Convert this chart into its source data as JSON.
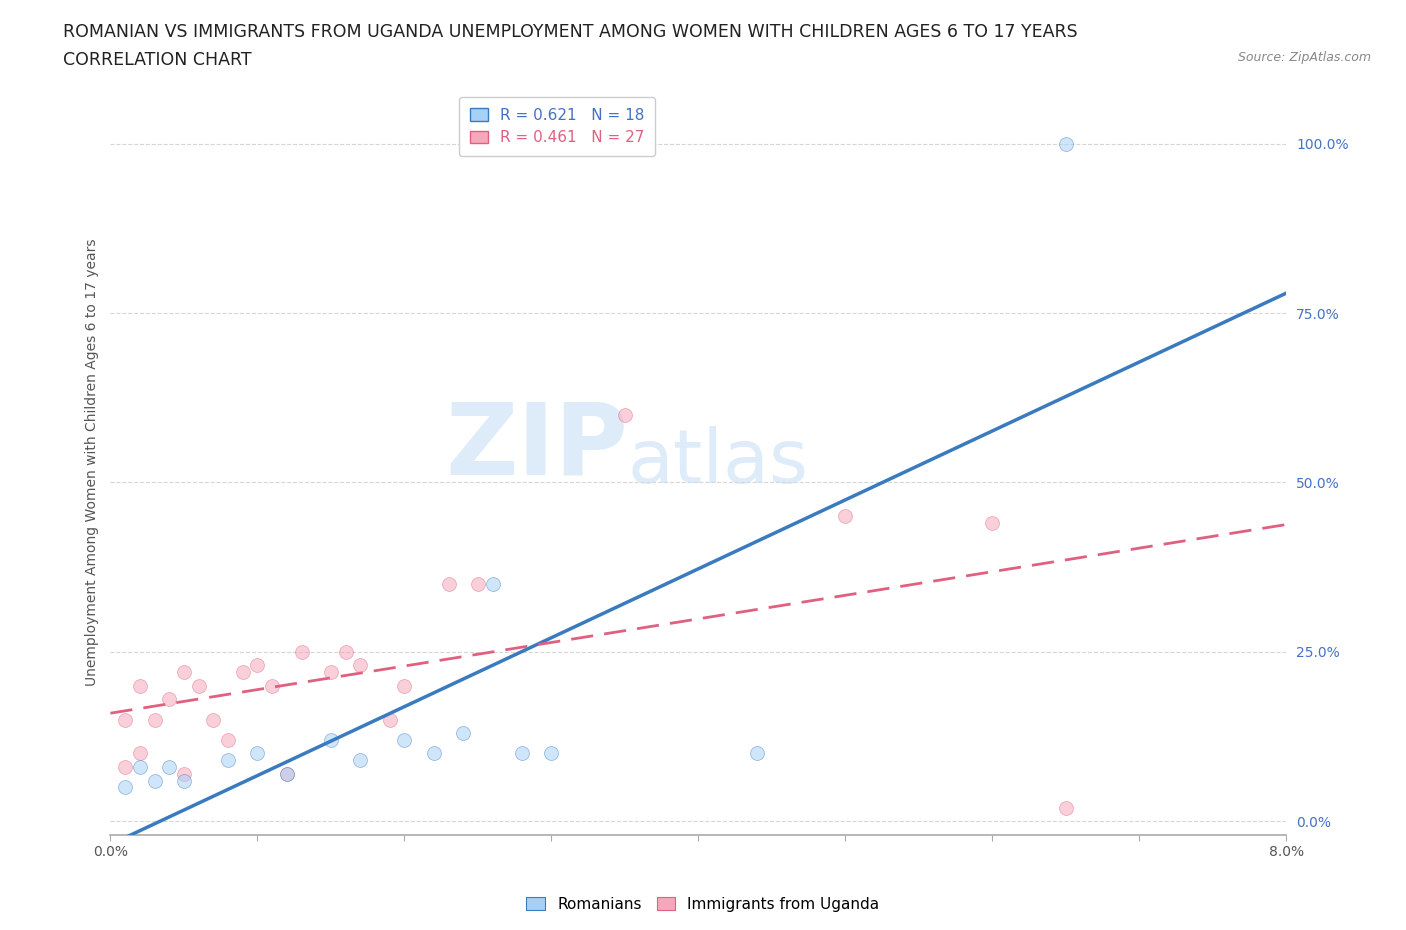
{
  "title_line1": "ROMANIAN VS IMMIGRANTS FROM UGANDA UNEMPLOYMENT AMONG WOMEN WITH CHILDREN AGES 6 TO 17 YEARS",
  "title_line2": "CORRELATION CHART",
  "source": "Source: ZipAtlas.com",
  "ylabel": "Unemployment Among Women with Children Ages 6 to 17 years",
  "xlim": [
    0.0,
    0.08
  ],
  "ylim": [
    -0.02,
    1.08
  ],
  "x_ticks": [
    0.0,
    0.01,
    0.02,
    0.03,
    0.04,
    0.05,
    0.06,
    0.07,
    0.08
  ],
  "x_tick_labels": [
    "0.0%",
    "",
    "",
    "",
    "",
    "",
    "",
    "",
    "8.0%"
  ],
  "y_ticks": [
    0.0,
    0.25,
    0.5,
    0.75,
    1.0
  ],
  "y_tick_labels": [
    "0.0%",
    "25.0%",
    "50.0%",
    "75.0%",
    "100.0%"
  ],
  "romanian_color": "#a8d0f5",
  "uganda_color": "#f5a8bb",
  "romanian_line_color": "#3a7abf",
  "uganda_line_color": "#e06080",
  "romanian_R": 0.621,
  "romanian_N": 18,
  "uganda_R": 0.461,
  "uganda_N": 27,
  "watermark_zip": "ZIP",
  "watermark_atlas": "atlas",
  "background_color": "#ffffff",
  "grid_color": "#cccccc",
  "title_fontsize": 12.5,
  "axis_label_fontsize": 10,
  "tick_fontsize": 10,
  "legend_fontsize": 11,
  "marker_size": 100,
  "marker_alpha": 0.55,
  "roman_x": [
    0.001,
    0.002,
    0.003,
    0.004,
    0.005,
    0.008,
    0.01,
    0.012,
    0.015,
    0.017,
    0.02,
    0.022,
    0.024,
    0.026,
    0.028,
    0.03,
    0.044,
    0.065
  ],
  "roman_y": [
    0.05,
    0.08,
    0.06,
    0.08,
    0.06,
    0.09,
    0.1,
    0.07,
    0.12,
    0.09,
    0.12,
    0.1,
    0.13,
    0.35,
    0.1,
    0.1,
    0.1,
    1.0
  ],
  "uganda_x": [
    0.001,
    0.001,
    0.002,
    0.002,
    0.003,
    0.004,
    0.005,
    0.005,
    0.006,
    0.007,
    0.008,
    0.009,
    0.01,
    0.011,
    0.012,
    0.013,
    0.015,
    0.016,
    0.017,
    0.019,
    0.02,
    0.023,
    0.025,
    0.035,
    0.05,
    0.06,
    0.065
  ],
  "uganda_y": [
    0.08,
    0.15,
    0.1,
    0.2,
    0.15,
    0.18,
    0.07,
    0.22,
    0.2,
    0.15,
    0.12,
    0.22,
    0.23,
    0.2,
    0.07,
    0.25,
    0.22,
    0.25,
    0.23,
    0.15,
    0.2,
    0.35,
    0.35,
    0.6,
    0.45,
    0.44,
    0.02
  ]
}
